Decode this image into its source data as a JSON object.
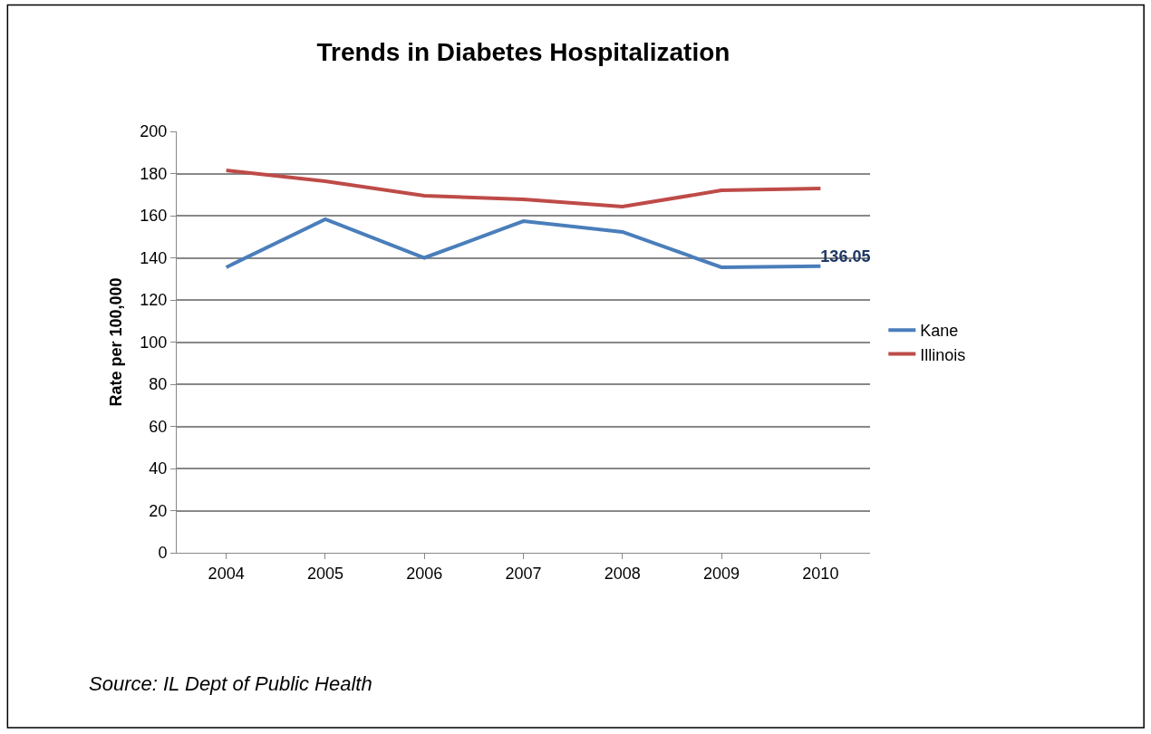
{
  "chart_data": {
    "type": "line",
    "title": "Trends in Diabetes Hospitalization",
    "ylabel": "Rate per 100,000",
    "categories": [
      "2004",
      "2005",
      "2006",
      "2007",
      "2008",
      "2009",
      "2010"
    ],
    "series": [
      {
        "name": "Kane",
        "color": "#4a7ebb",
        "values": [
          135.5,
          158.3,
          140,
          157.4,
          152.3,
          135.5,
          136.05
        ],
        "value_labels": [
          null,
          null,
          null,
          null,
          null,
          null,
          "136.05"
        ]
      },
      {
        "name": "Illinois",
        "color": "#be4b48",
        "values": [
          181.5,
          176.3,
          169.5,
          167.7,
          164.3,
          172,
          172.9
        ]
      }
    ],
    "ylim": [
      0,
      200
    ],
    "yticks": [
      0,
      20,
      40,
      60,
      80,
      100,
      120,
      140,
      160,
      180,
      200
    ],
    "grid": "y",
    "legend": "right",
    "marker": "none",
    "annotations": [
      "Source: IL Dept of Public Health"
    ]
  }
}
